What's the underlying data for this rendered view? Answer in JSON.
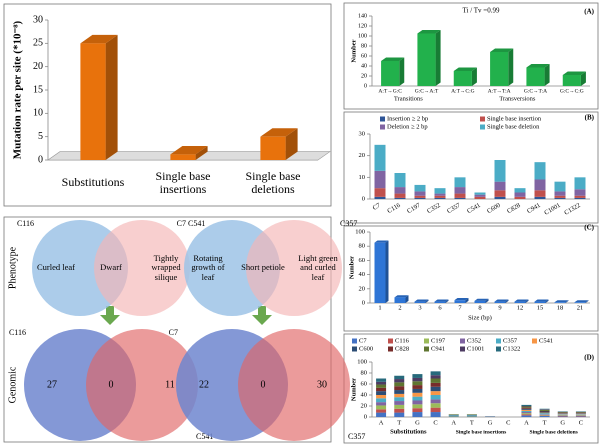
{
  "chart_data": [
    {
      "type": "bar",
      "ylabel": "Mutation rate per site (*10⁻⁸)",
      "categories": [
        "Substitutions",
        "Single base insertions",
        "Single base deletions"
      ],
      "values": [
        25,
        1.2,
        5
      ],
      "color": "#e8720c",
      "ylim": [
        0,
        30
      ],
      "yticks": [
        0,
        5,
        10,
        15,
        20,
        25,
        30
      ]
    },
    {
      "type": "bar",
      "title": "Ti / Tv =0.99",
      "label": "(A)",
      "ylabel": "Number",
      "categories": [
        "A:T→G:C",
        "G:C→A:T",
        "A:T→C:G",
        "A:T→T:A",
        "G:C→T:A",
        "G:C→C:G"
      ],
      "group_labels": [
        "Transitions",
        "Transversions"
      ],
      "values": [
        50,
        105,
        30,
        68,
        37,
        22
      ],
      "color": "#22b14c",
      "ylim": [
        0,
        140
      ],
      "yticks": [
        0,
        20,
        40,
        60,
        80,
        100,
        120,
        140
      ]
    },
    {
      "type": "stacked_bar",
      "label": "(B)",
      "categories": [
        "C7",
        "C116",
        "C197",
        "C352",
        "C357",
        "C541",
        "C600",
        "C828",
        "C941",
        "C1001",
        "C1322"
      ],
      "ylim": [
        0,
        30
      ],
      "yticks": [
        0,
        10,
        20,
        30
      ],
      "series": [
        {
          "name": "Insertion ≥ 2 bp",
          "color": "#2f5597",
          "values": [
            1,
            0.5,
            0.5,
            0.5,
            0.5,
            0,
            1,
            0,
            1,
            0.5,
            0.5
          ]
        },
        {
          "name": "Single base insertion",
          "color": "#c0504d",
          "values": [
            4,
            2,
            1,
            1,
            2,
            1,
            3,
            1,
            3,
            1,
            1
          ]
        },
        {
          "name": "Deletion ≥ 2 bp",
          "color": "#8064a2",
          "values": [
            8,
            3,
            2,
            1,
            3,
            1,
            4,
            2,
            5,
            2,
            3
          ]
        },
        {
          "name": "Single base deletion",
          "color": "#4bacc6",
          "values": [
            12,
            6.5,
            3,
            2.5,
            4.5,
            1,
            10,
            2,
            8,
            4.5,
            5.5
          ]
        }
      ]
    },
    {
      "type": "bar",
      "label": "(C)",
      "ylabel": "Number",
      "xlabel": "Size (bp)",
      "categories": [
        1,
        2,
        3,
        6,
        7,
        8,
        9,
        12,
        15,
        18,
        21
      ],
      "values": [
        85,
        8,
        2,
        2,
        4,
        3,
        2,
        2,
        2,
        1,
        1
      ],
      "color": "#2e75d6",
      "ylim": [
        0,
        100
      ],
      "yticks": [
        0,
        20,
        40,
        60,
        80,
        100
      ]
    },
    {
      "type": "stacked_bar",
      "label": "(D)",
      "ylabel": "Number",
      "categories": [
        "A",
        "T",
        "G",
        "C",
        "A",
        "T",
        "G",
        "C",
        "A",
        "T",
        "G",
        "C"
      ],
      "group_labels": [
        "Substitutions",
        "Single base insertions",
        "Single base deletions"
      ],
      "ylim": [
        0,
        100
      ],
      "yticks": [
        0,
        20,
        40,
        60,
        80,
        100
      ],
      "series": [
        {
          "name": "C7",
          "color": "#4472c4",
          "values": [
            8,
            8,
            9,
            9,
            1,
            1,
            0,
            0,
            3,
            2,
            1,
            1
          ]
        },
        {
          "name": "C116",
          "color": "#c0504d",
          "values": [
            6,
            7,
            7,
            8,
            0,
            0,
            0,
            0,
            2,
            1,
            1,
            1
          ]
        },
        {
          "name": "C197",
          "color": "#9bbb59",
          "values": [
            7,
            7,
            7,
            8,
            1,
            1,
            0,
            0,
            2,
            1,
            1,
            1
          ]
        },
        {
          "name": "C352",
          "color": "#8064a2",
          "values": [
            6,
            7,
            7,
            7,
            0,
            0,
            0,
            0,
            2,
            1,
            1,
            1
          ]
        },
        {
          "name": "C357",
          "color": "#4bacc6",
          "values": [
            7,
            7,
            7,
            8,
            1,
            1,
            0,
            0,
            2,
            2,
            1,
            1
          ]
        },
        {
          "name": "C541",
          "color": "#f79646",
          "values": [
            6,
            6,
            7,
            7,
            0,
            0,
            0,
            0,
            2,
            1,
            1,
            1
          ]
        },
        {
          "name": "C600",
          "color": "#2c4d75",
          "values": [
            7,
            7,
            7,
            8,
            1,
            1,
            1,
            0,
            2,
            2,
            1,
            1
          ]
        },
        {
          "name": "C828",
          "color": "#772c2a",
          "values": [
            6,
            7,
            7,
            7,
            0,
            0,
            0,
            0,
            2,
            1,
            1,
            1
          ]
        },
        {
          "name": "C941",
          "color": "#5f7530",
          "values": [
            6,
            7,
            7,
            8,
            1,
            1,
            0,
            0,
            2,
            2,
            1,
            1
          ]
        },
        {
          "name": "C1001",
          "color": "#4d3b62",
          "values": [
            5,
            6,
            6,
            6,
            0,
            0,
            0,
            0,
            1,
            1,
            0,
            0
          ]
        },
        {
          "name": "C1322",
          "color": "#276a7c",
          "values": [
            6,
            6,
            7,
            7,
            0,
            0,
            0,
            0,
            2,
            1,
            1,
            1
          ]
        }
      ]
    },
    {
      "type": "venn",
      "sets": [
        "C116",
        "C541"
      ],
      "labels": [
        "Curled leaf",
        "Dwarf",
        "Tightly wrapped silique"
      ]
    },
    {
      "type": "venn",
      "sets": [
        "C7",
        "C357"
      ],
      "labels": [
        "Rotating growth of leaf",
        "Short petiole",
        "Light green and curled leaf"
      ]
    },
    {
      "type": "venn",
      "sets": [
        "C116",
        "C541"
      ],
      "values": [
        27,
        0,
        11
      ]
    },
    {
      "type": "venn",
      "sets": [
        "C7",
        "C357"
      ],
      "values": [
        22,
        0,
        30
      ]
    }
  ],
  "row_labels": [
    "Phenotype",
    "Genomic"
  ]
}
